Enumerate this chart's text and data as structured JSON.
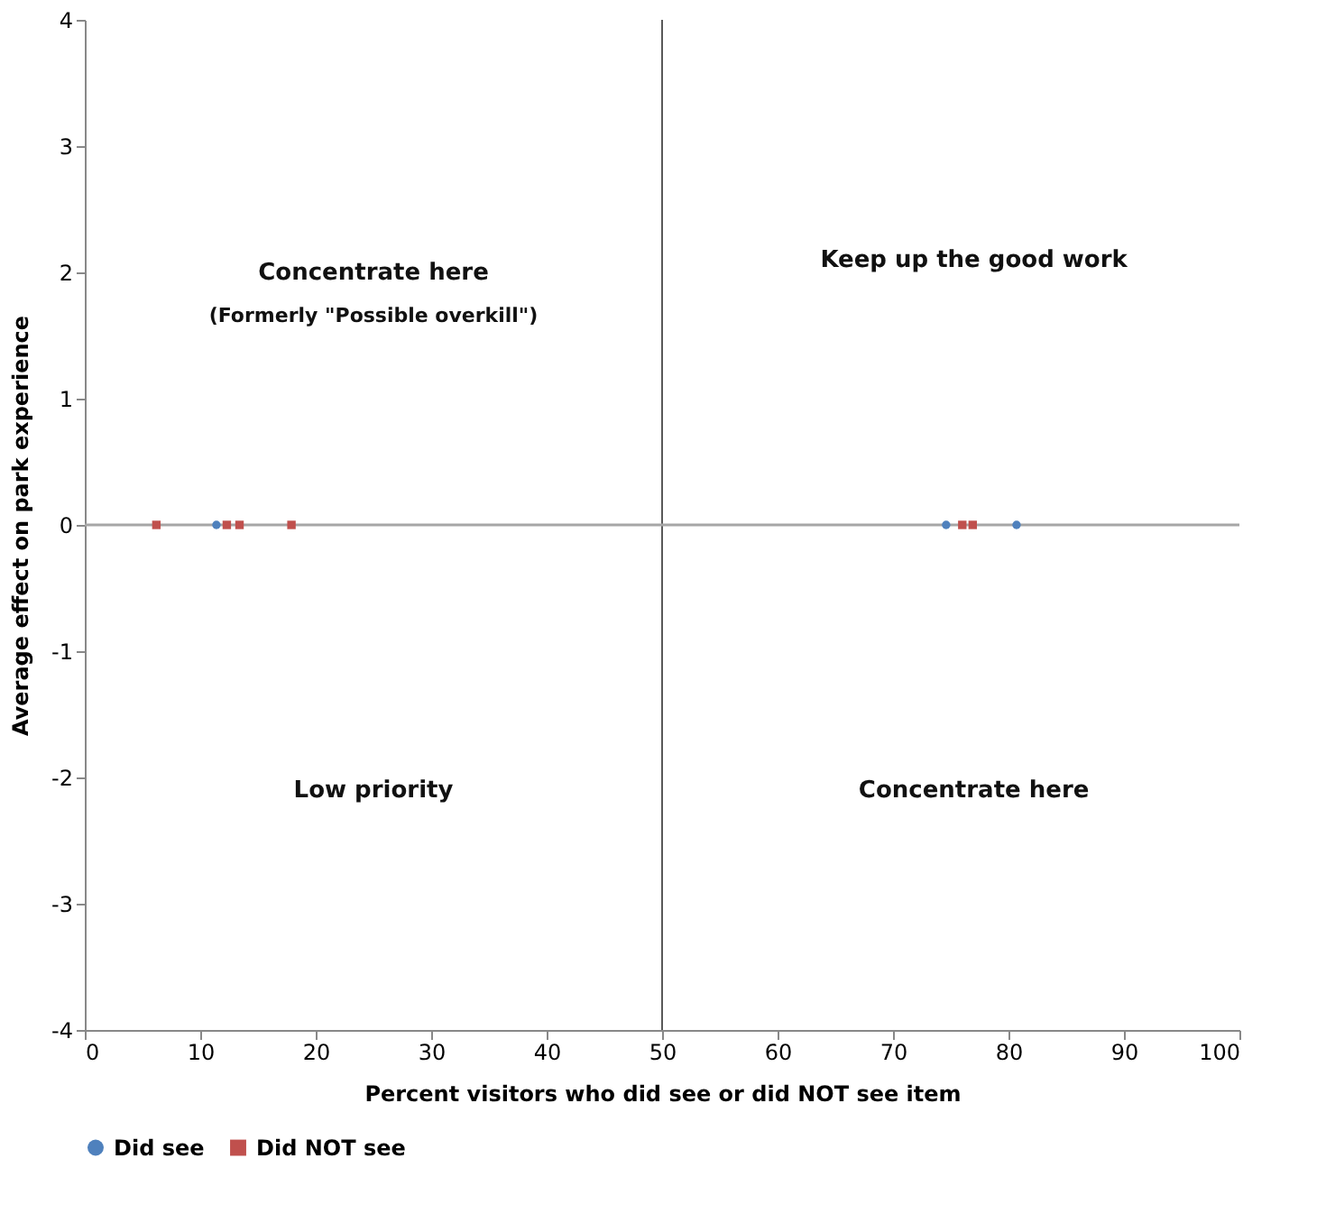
{
  "chart_data": {
    "type": "scatter",
    "xlabel": "Percent visitors who did see or did NOT see item",
    "ylabel": "Average effect on park experience",
    "series": [
      {
        "name": "Did see",
        "color": "#4f81bd",
        "marker": "circle",
        "x": [
          11.4,
          74.6,
          80.7
        ],
        "values": [
          0,
          0,
          0
        ]
      },
      {
        "name": "Did NOT see",
        "color": "#c0504d",
        "marker": "square",
        "x": [
          6.2,
          12.3,
          13.4,
          17.9,
          76,
          76.9
        ],
        "values": [
          0,
          0,
          0,
          0,
          0,
          0
        ]
      }
    ],
    "xlim": [
      0,
      100
    ],
    "xticks": [
      0,
      10,
      20,
      30,
      40,
      50,
      60,
      70,
      80,
      90,
      100
    ],
    "ylim": [
      -4,
      4
    ],
    "yticks": [
      -4,
      -3,
      -2,
      -1,
      0,
      1,
      2,
      3,
      4
    ],
    "ref_lines": [
      {
        "axis": "x",
        "value": 50,
        "color": "#595959"
      },
      {
        "axis": "y",
        "value": 0,
        "color": "#a6a6a6"
      }
    ],
    "annotations": [
      "Concentrate here",
      "(Formerly \"Possible overkill\")",
      "Keep up the good work",
      "Low priority",
      "Concentrate here"
    ],
    "grid": false,
    "legend": "bottom"
  }
}
